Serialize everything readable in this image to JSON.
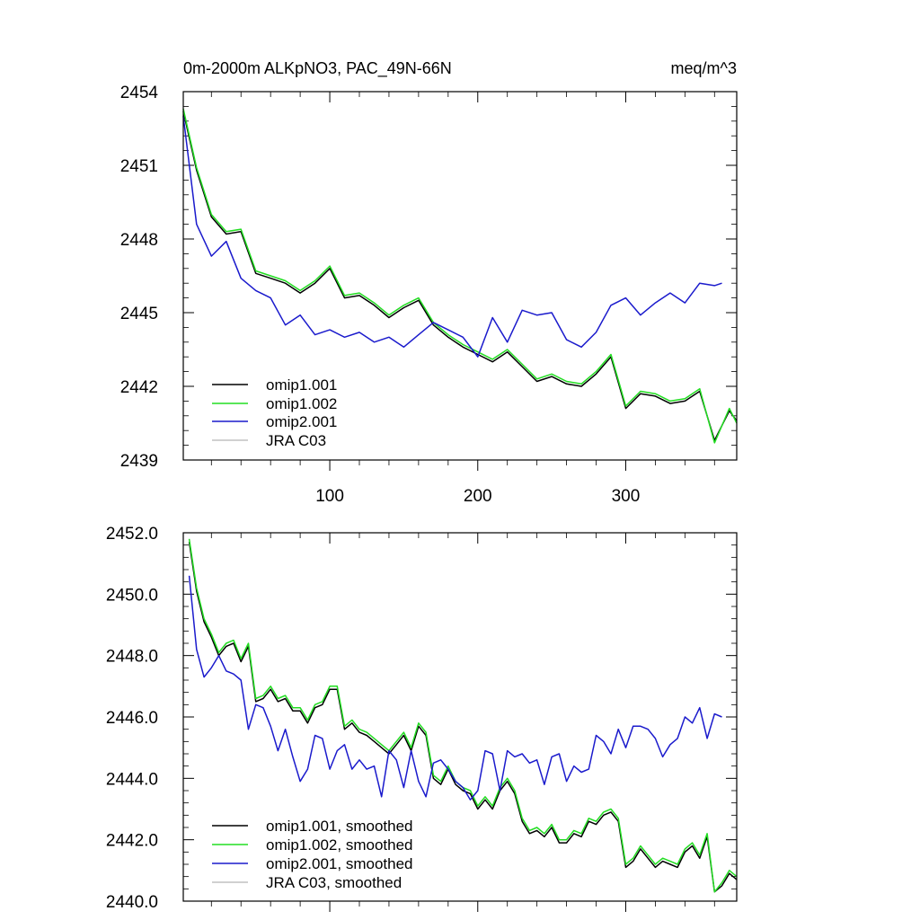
{
  "header": {
    "title": "0m-2000m ALKpNO3, PAC_49N-66N",
    "units": "meq/m^3"
  },
  "colors": {
    "omip1_001": "#000000",
    "omip1_002": "#22dd22",
    "omip2_001": "#1a1acc",
    "jra_c03": "#c0c0c0"
  },
  "chart_data": [
    {
      "type": "line",
      "title": "0m-2000m ALKpNO3, PAC_49N-66N",
      "units": "meq/m^3",
      "xlabel": "",
      "ylabel": "",
      "xlim": [
        1,
        375
      ],
      "ylim": [
        2439,
        2454
      ],
      "xticks": [
        100,
        200,
        300
      ],
      "xtick_labels": [
        "100",
        "200",
        "300"
      ],
      "yticks": [
        2439,
        2442,
        2445,
        2448,
        2451,
        2454
      ],
      "ytick_labels": [
        "2439",
        "2442",
        "2445",
        "2448",
        "2451",
        "2454"
      ],
      "legend_position": "bottom-left",
      "legend": [
        "omip1.001",
        "omip1.002",
        "omip2.001",
        "JRA C03"
      ],
      "series": [
        {
          "name": "omip1.001",
          "color_key": "omip1_001",
          "x": [
            1,
            10,
            20,
            30,
            40,
            50,
            60,
            70,
            80,
            90,
            100,
            110,
            120,
            130,
            140,
            150,
            160,
            170,
            180,
            190,
            200,
            210,
            220,
            230,
            240,
            250,
            260,
            270,
            280,
            290,
            300,
            310,
            320,
            330,
            340,
            350,
            360,
            370,
            375
          ],
          "values": [
            2453.2,
            2450.8,
            2448.9,
            2448.2,
            2448.3,
            2446.6,
            2446.4,
            2446.2,
            2445.8,
            2446.2,
            2446.8,
            2445.6,
            2445.7,
            2445.3,
            2444.8,
            2445.2,
            2445.5,
            2444.5,
            2444.0,
            2443.6,
            2443.3,
            2443.0,
            2443.4,
            2442.8,
            2442.2,
            2442.4,
            2442.1,
            2442.0,
            2442.5,
            2443.2,
            2441.1,
            2441.7,
            2441.6,
            2441.3,
            2441.4,
            2441.8,
            2439.8,
            2441.0,
            2440.6
          ]
        },
        {
          "name": "omip1.002",
          "color_key": "omip1_002",
          "x": [
            1,
            10,
            20,
            30,
            40,
            50,
            60,
            70,
            80,
            90,
            100,
            110,
            120,
            130,
            140,
            150,
            160,
            170,
            180,
            190,
            200,
            210,
            220,
            230,
            240,
            250,
            260,
            270,
            280,
            290,
            300,
            310,
            320,
            330,
            340,
            350,
            360,
            370,
            375
          ],
          "values": [
            2453.3,
            2450.9,
            2449.0,
            2448.3,
            2448.4,
            2446.7,
            2446.5,
            2446.3,
            2445.9,
            2446.3,
            2446.9,
            2445.7,
            2445.8,
            2445.4,
            2444.9,
            2445.3,
            2445.6,
            2444.6,
            2444.1,
            2443.7,
            2443.4,
            2443.1,
            2443.5,
            2442.9,
            2442.3,
            2442.5,
            2442.2,
            2442.1,
            2442.6,
            2443.3,
            2441.2,
            2441.8,
            2441.7,
            2441.4,
            2441.5,
            2441.9,
            2439.7,
            2441.1,
            2440.5
          ]
        },
        {
          "name": "omip2.001",
          "color_key": "omip2_001",
          "x": [
            1,
            10,
            20,
            30,
            40,
            50,
            60,
            70,
            80,
            90,
            100,
            110,
            120,
            130,
            140,
            150,
            160,
            170,
            180,
            190,
            200,
            210,
            220,
            230,
            240,
            250,
            260,
            270,
            280,
            290,
            300,
            310,
            320,
            330,
            340,
            350,
            360,
            365
          ],
          "values": [
            2453.0,
            2448.6,
            2447.3,
            2447.9,
            2446.4,
            2445.9,
            2445.6,
            2444.5,
            2444.9,
            2444.1,
            2444.3,
            2444.0,
            2444.2,
            2443.8,
            2444.0,
            2443.6,
            2444.1,
            2444.6,
            2444.3,
            2444.0,
            2443.2,
            2444.8,
            2443.8,
            2445.1,
            2444.9,
            2445.0,
            2443.9,
            2443.6,
            2444.2,
            2445.3,
            2445.6,
            2444.9,
            2445.4,
            2445.8,
            2445.4,
            2446.2,
            2446.1,
            2446.2
          ]
        },
        {
          "name": "JRA C03",
          "color_key": "jra_c03",
          "x": [],
          "values": []
        }
      ]
    },
    {
      "type": "line",
      "title": "",
      "xlabel": "",
      "ylabel": "",
      "xlim": [
        1,
        375
      ],
      "ylim": [
        2440.0,
        2452.0
      ],
      "xticks": [
        100,
        200,
        300
      ],
      "xtick_labels": [],
      "yticks": [
        2440.0,
        2442.0,
        2444.0,
        2446.0,
        2448.0,
        2450.0,
        2452.0
      ],
      "ytick_labels": [
        "2440.0",
        "2442.0",
        "2444.0",
        "2446.0",
        "2448.0",
        "2450.0",
        "2452.0"
      ],
      "legend_position": "bottom-left",
      "legend": [
        "omip1.001, smoothed",
        "omip1.002, smoothed",
        "omip2.001, smoothed",
        "JRA C03, smoothed"
      ],
      "series": [
        {
          "name": "omip1.001, smoothed",
          "color_key": "omip1_001",
          "x": [
            5,
            10,
            15,
            20,
            25,
            30,
            35,
            40,
            45,
            50,
            55,
            60,
            65,
            70,
            75,
            80,
            85,
            90,
            95,
            100,
            105,
            110,
            115,
            120,
            125,
            130,
            135,
            140,
            145,
            150,
            155,
            160,
            165,
            170,
            175,
            180,
            185,
            190,
            195,
            200,
            205,
            210,
            215,
            220,
            225,
            230,
            235,
            240,
            245,
            250,
            255,
            260,
            265,
            270,
            275,
            280,
            285,
            290,
            295,
            300,
            305,
            310,
            315,
            320,
            325,
            330,
            335,
            340,
            345,
            350,
            355,
            360,
            365,
            370,
            375
          ],
          "values": [
            2451.7,
            2450.1,
            2449.1,
            2448.6,
            2448.0,
            2448.3,
            2448.4,
            2447.8,
            2448.3,
            2446.5,
            2446.6,
            2446.9,
            2446.5,
            2446.6,
            2446.2,
            2446.2,
            2445.8,
            2446.3,
            2446.4,
            2446.9,
            2446.9,
            2445.6,
            2445.8,
            2445.5,
            2445.4,
            2445.2,
            2445.0,
            2444.8,
            2445.1,
            2445.4,
            2444.9,
            2445.7,
            2445.4,
            2444.0,
            2443.8,
            2444.3,
            2443.8,
            2443.6,
            2443.5,
            2443.0,
            2443.3,
            2443.0,
            2443.6,
            2443.9,
            2443.5,
            2442.6,
            2442.2,
            2442.3,
            2442.1,
            2442.4,
            2441.9,
            2441.9,
            2442.2,
            2442.1,
            2442.6,
            2442.5,
            2442.8,
            2442.9,
            2442.6,
            2441.1,
            2441.3,
            2441.7,
            2441.4,
            2441.1,
            2441.3,
            2441.2,
            2441.1,
            2441.6,
            2441.8,
            2441.4,
            2442.1,
            2440.3,
            2440.5,
            2440.9,
            2440.7
          ]
        },
        {
          "name": "omip1.002, smoothed",
          "color_key": "omip1_002",
          "x": [
            5,
            10,
            15,
            20,
            25,
            30,
            35,
            40,
            45,
            50,
            55,
            60,
            65,
            70,
            75,
            80,
            85,
            90,
            95,
            100,
            105,
            110,
            115,
            120,
            125,
            130,
            135,
            140,
            145,
            150,
            155,
            160,
            165,
            170,
            175,
            180,
            185,
            190,
            195,
            200,
            205,
            210,
            215,
            220,
            225,
            230,
            235,
            240,
            245,
            250,
            255,
            260,
            265,
            270,
            275,
            280,
            285,
            290,
            295,
            300,
            305,
            310,
            315,
            320,
            325,
            330,
            335,
            340,
            345,
            350,
            355,
            360,
            365,
            370,
            375
          ],
          "values": [
            2451.8,
            2450.2,
            2449.2,
            2448.7,
            2448.1,
            2448.4,
            2448.5,
            2447.9,
            2448.4,
            2446.6,
            2446.7,
            2447.0,
            2446.6,
            2446.7,
            2446.3,
            2446.3,
            2445.9,
            2446.4,
            2446.5,
            2447.0,
            2447.0,
            2445.7,
            2445.9,
            2445.6,
            2445.5,
            2445.3,
            2445.1,
            2444.9,
            2445.2,
            2445.5,
            2445.0,
            2445.8,
            2445.5,
            2444.1,
            2443.9,
            2444.4,
            2443.9,
            2443.7,
            2443.6,
            2443.1,
            2443.4,
            2443.1,
            2443.7,
            2444.0,
            2443.6,
            2442.7,
            2442.3,
            2442.4,
            2442.2,
            2442.5,
            2442.0,
            2442.0,
            2442.3,
            2442.2,
            2442.7,
            2442.6,
            2442.9,
            2443.0,
            2442.7,
            2441.2,
            2441.4,
            2441.8,
            2441.5,
            2441.2,
            2441.4,
            2441.3,
            2441.2,
            2441.7,
            2441.9,
            2441.5,
            2442.2,
            2440.3,
            2440.6,
            2441.0,
            2440.8
          ]
        },
        {
          "name": "omip2.001, smoothed",
          "color_key": "omip2_001",
          "x": [
            5,
            10,
            15,
            20,
            25,
            30,
            35,
            40,
            45,
            50,
            55,
            60,
            65,
            70,
            75,
            80,
            85,
            90,
            95,
            100,
            105,
            110,
            115,
            120,
            125,
            130,
            135,
            140,
            145,
            150,
            155,
            160,
            165,
            170,
            175,
            180,
            185,
            190,
            195,
            200,
            205,
            210,
            215,
            220,
            225,
            230,
            235,
            240,
            245,
            250,
            255,
            260,
            265,
            270,
            275,
            280,
            285,
            290,
            295,
            300,
            305,
            310,
            315,
            320,
            325,
            330,
            335,
            340,
            345,
            350,
            355,
            360,
            365
          ],
          "values": [
            2450.6,
            2448.2,
            2447.3,
            2447.6,
            2448.0,
            2447.5,
            2447.4,
            2447.2,
            2445.6,
            2446.4,
            2446.3,
            2445.7,
            2444.9,
            2445.6,
            2444.7,
            2443.9,
            2444.3,
            2445.4,
            2445.3,
            2444.3,
            2444.9,
            2445.1,
            2444.3,
            2444.6,
            2444.3,
            2444.4,
            2443.4,
            2444.9,
            2444.6,
            2443.7,
            2444.9,
            2443.9,
            2443.4,
            2444.5,
            2444.6,
            2444.3,
            2443.9,
            2443.7,
            2443.3,
            2443.6,
            2444.9,
            2444.8,
            2443.6,
            2444.9,
            2444.7,
            2444.8,
            2444.5,
            2444.6,
            2443.8,
            2444.7,
            2444.8,
            2443.9,
            2444.4,
            2444.2,
            2444.3,
            2445.4,
            2445.2,
            2444.8,
            2445.6,
            2445.0,
            2445.7,
            2445.7,
            2445.6,
            2445.3,
            2444.7,
            2445.1,
            2445.3,
            2446.0,
            2445.8,
            2446.3,
            2445.3,
            2446.1,
            2446.0
          ]
        },
        {
          "name": "JRA C03, smoothed",
          "color_key": "jra_c03",
          "x": [],
          "values": []
        }
      ]
    }
  ]
}
